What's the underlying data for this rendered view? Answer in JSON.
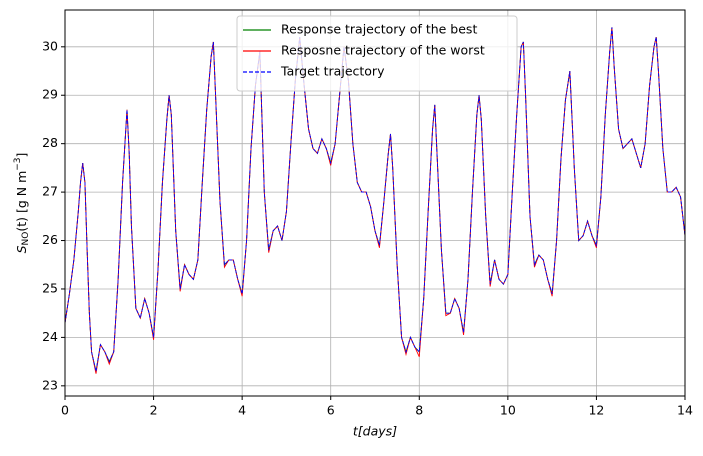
{
  "chart_data": {
    "type": "line",
    "x_label": "t[days]",
    "y_label": {
      "parts": [
        "S",
        "NO",
        "(t) [g N m",
        "−3",
        "]"
      ]
    },
    "xlim": [
      0,
      14
    ],
    "xticks": [
      0,
      2,
      4,
      6,
      8,
      10,
      12,
      14
    ],
    "ylim": [
      22.79,
      30.76
    ],
    "yticks": [
      23,
      24,
      25,
      26,
      27,
      28,
      29,
      30
    ],
    "grid": true,
    "legend_position": "upper center",
    "x": [
      0,
      0.1,
      0.2,
      0.3,
      0.35,
      0.4,
      0.45,
      0.5,
      0.55,
      0.6,
      0.7,
      0.8,
      0.9,
      1.0,
      1.1,
      1.2,
      1.3,
      1.4,
      1.45,
      1.5,
      1.6,
      1.7,
      1.8,
      1.9,
      2.0,
      2.1,
      2.2,
      2.3,
      2.35,
      2.4,
      2.5,
      2.6,
      2.7,
      2.8,
      2.9,
      3.0,
      3.1,
      3.2,
      3.3,
      3.35,
      3.4,
      3.5,
      3.6,
      3.7,
      3.8,
      3.9,
      4.0,
      4.1,
      4.2,
      4.3,
      4.4,
      4.5,
      4.6,
      4.7,
      4.8,
      4.9,
      5.0,
      5.1,
      5.2,
      5.3,
      5.4,
      5.5,
      5.6,
      5.7,
      5.8,
      5.9,
      6.0,
      6.1,
      6.2,
      6.3,
      6.4,
      6.5,
      6.6,
      6.7,
      6.8,
      6.9,
      7.0,
      7.1,
      7.2,
      7.3,
      7.35,
      7.4,
      7.5,
      7.6,
      7.7,
      7.8,
      7.9,
      8.0,
      8.1,
      8.2,
      8.3,
      8.35,
      8.4,
      8.5,
      8.6,
      8.7,
      8.8,
      8.9,
      9.0,
      9.1,
      9.2,
      9.3,
      9.35,
      9.4,
      9.5,
      9.6,
      9.7,
      9.8,
      9.9,
      10.0,
      10.1,
      10.2,
      10.3,
      10.35,
      10.4,
      10.5,
      10.6,
      10.7,
      10.8,
      10.9,
      11.0,
      11.1,
      11.2,
      11.3,
      11.4,
      11.5,
      11.6,
      11.7,
      11.8,
      11.9,
      12.0,
      12.1,
      12.2,
      12.3,
      12.35,
      12.4,
      12.5,
      12.6,
      12.7,
      12.8,
      12.9,
      13.0,
      13.1,
      13.2,
      13.3,
      13.35,
      13.4,
      13.5,
      13.6,
      13.7,
      13.8,
      13.9,
      14.0
    ],
    "series": [
      {
        "name": "Response trajectory of the best",
        "color": "#008000",
        "dash": "solid",
        "values": [
          24.3,
          24.9,
          25.6,
          26.6,
          27.2,
          27.6,
          27.2,
          25.8,
          24.5,
          23.7,
          23.3,
          23.85,
          23.7,
          23.5,
          23.7,
          25.2,
          27.2,
          28.7,
          27.8,
          26.3,
          24.6,
          24.4,
          24.8,
          24.5,
          24.0,
          25.4,
          27.2,
          28.5,
          29.0,
          28.6,
          26.2,
          25.0,
          25.5,
          25.3,
          25.2,
          25.6,
          27.2,
          28.7,
          29.8,
          30.1,
          29.0,
          26.8,
          25.5,
          25.6,
          25.6,
          25.2,
          24.9,
          26.0,
          27.9,
          29.2,
          29.9,
          27.0,
          25.8,
          26.2,
          26.3,
          26.0,
          26.6,
          28.0,
          29.3,
          30.2,
          29.2,
          28.3,
          27.9,
          27.8,
          28.1,
          27.9,
          27.6,
          28.0,
          29.0,
          30.0,
          29.3,
          28.0,
          27.2,
          27.0,
          27.0,
          26.7,
          26.2,
          25.9,
          26.8,
          27.8,
          28.2,
          27.5,
          25.5,
          24.0,
          23.7,
          24.0,
          23.8,
          23.7,
          24.8,
          26.6,
          28.3,
          28.8,
          27.8,
          25.8,
          24.5,
          24.5,
          24.8,
          24.6,
          24.1,
          25.2,
          27.0,
          28.6,
          29.0,
          28.5,
          26.5,
          25.1,
          25.6,
          25.2,
          25.1,
          25.3,
          27.0,
          28.6,
          30.0,
          30.1,
          29.0,
          26.5,
          25.5,
          25.7,
          25.6,
          25.2,
          24.9,
          26.0,
          27.7,
          28.9,
          29.5,
          27.5,
          26.0,
          26.1,
          26.4,
          26.1,
          25.9,
          26.9,
          28.6,
          29.9,
          30.4,
          29.6,
          28.3,
          27.9,
          28.0,
          28.1,
          27.8,
          27.5,
          28.0,
          29.2,
          30.0,
          30.2,
          29.5,
          27.9,
          27.0,
          27.0,
          27.1,
          26.9,
          26.1
        ]
      },
      {
        "name": "Resposne trajectory of the worst",
        "color": "#ff0000",
        "dash": "solid",
        "values": [
          24.3,
          24.9,
          25.6,
          26.6,
          27.2,
          27.6,
          27.2,
          25.8,
          24.5,
          23.7,
          23.25,
          23.85,
          23.7,
          23.45,
          23.7,
          25.2,
          27.2,
          28.7,
          27.8,
          26.3,
          24.6,
          24.4,
          24.8,
          24.5,
          23.95,
          25.4,
          27.2,
          28.5,
          29.0,
          28.6,
          26.2,
          24.95,
          25.5,
          25.3,
          25.2,
          25.6,
          27.2,
          28.7,
          29.8,
          30.1,
          29.0,
          26.8,
          25.45,
          25.6,
          25.6,
          25.2,
          24.85,
          26.0,
          27.9,
          29.2,
          29.9,
          27.0,
          25.75,
          26.2,
          26.3,
          26.0,
          26.6,
          28.0,
          29.3,
          30.2,
          29.2,
          28.3,
          27.9,
          27.8,
          28.1,
          27.9,
          27.55,
          28.0,
          29.0,
          30.0,
          29.3,
          28.0,
          27.2,
          27.0,
          27.0,
          26.7,
          26.2,
          25.85,
          26.8,
          27.8,
          28.2,
          27.5,
          25.5,
          24.0,
          23.65,
          24.0,
          23.8,
          23.6,
          24.8,
          26.6,
          28.3,
          28.8,
          27.8,
          25.8,
          24.45,
          24.5,
          24.8,
          24.6,
          24.05,
          25.2,
          27.0,
          28.6,
          29.0,
          28.5,
          26.5,
          25.05,
          25.6,
          25.2,
          25.1,
          25.3,
          27.0,
          28.6,
          30.0,
          30.1,
          29.0,
          26.5,
          25.45,
          25.7,
          25.6,
          25.2,
          24.85,
          26.0,
          27.7,
          28.9,
          29.5,
          27.5,
          26.0,
          26.1,
          26.4,
          26.1,
          25.85,
          26.9,
          28.6,
          29.9,
          30.4,
          29.6,
          28.3,
          27.9,
          28.0,
          28.1,
          27.8,
          27.5,
          28.0,
          29.2,
          30.0,
          30.2,
          29.5,
          27.9,
          27.0,
          27.0,
          27.1,
          26.9,
          26.1
        ]
      },
      {
        "name": "Target trajectory",
        "color": "#0000ff",
        "dash": "dashed",
        "values": [
          24.3,
          24.9,
          25.6,
          26.6,
          27.2,
          27.6,
          27.2,
          25.8,
          24.5,
          23.7,
          23.3,
          23.85,
          23.7,
          23.5,
          23.7,
          25.2,
          27.2,
          28.7,
          27.8,
          26.3,
          24.6,
          24.4,
          24.8,
          24.5,
          24.0,
          25.4,
          27.2,
          28.5,
          29.0,
          28.6,
          26.2,
          25.0,
          25.5,
          25.3,
          25.2,
          25.6,
          27.2,
          28.7,
          29.8,
          30.1,
          29.0,
          26.8,
          25.5,
          25.6,
          25.6,
          25.2,
          24.9,
          26.0,
          27.9,
          29.2,
          29.9,
          27.0,
          25.8,
          26.2,
          26.3,
          26.0,
          26.6,
          28.0,
          29.3,
          30.2,
          29.2,
          28.3,
          27.9,
          27.8,
          28.1,
          27.9,
          27.6,
          28.0,
          29.0,
          30.0,
          29.3,
          28.0,
          27.2,
          27.0,
          27.0,
          26.7,
          26.2,
          25.9,
          26.8,
          27.8,
          28.2,
          27.5,
          25.5,
          24.0,
          23.7,
          24.0,
          23.8,
          23.7,
          24.8,
          26.6,
          28.3,
          28.8,
          27.8,
          25.8,
          24.5,
          24.5,
          24.8,
          24.6,
          24.1,
          25.2,
          27.0,
          28.6,
          29.0,
          28.5,
          26.5,
          25.1,
          25.6,
          25.2,
          25.1,
          25.3,
          27.0,
          28.6,
          30.0,
          30.1,
          29.0,
          26.5,
          25.5,
          25.7,
          25.6,
          25.2,
          24.9,
          26.0,
          27.7,
          28.9,
          29.5,
          27.5,
          26.0,
          26.1,
          26.4,
          26.1,
          25.9,
          26.9,
          28.6,
          29.9,
          30.4,
          29.6,
          28.3,
          27.9,
          28.0,
          28.1,
          27.8,
          27.5,
          28.0,
          29.2,
          30.0,
          30.2,
          29.5,
          27.9,
          27.0,
          27.0,
          27.1,
          26.9,
          26.1
        ]
      }
    ]
  }
}
